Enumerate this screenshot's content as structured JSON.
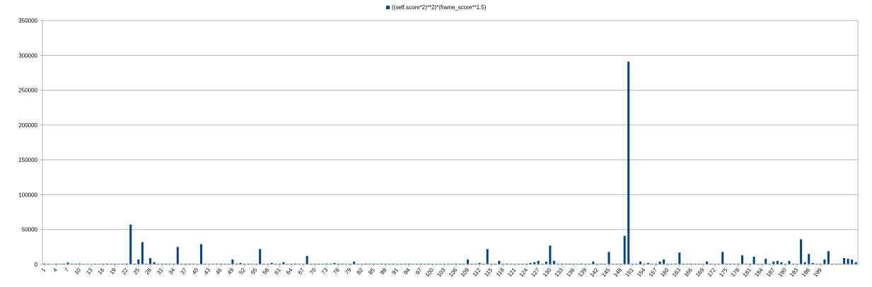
{
  "chart_data": {
    "type": "bar",
    "legend_position": "top",
    "grid": true,
    "color": "#004586",
    "ylim": [
      0,
      350000
    ],
    "yticks": [
      0,
      50000,
      100000,
      150000,
      200000,
      250000,
      300000,
      350000
    ],
    "series": [
      {
        "name": "((self.score*2)**2)*(frame_score**1.5)",
        "values": [
          1200,
          1000,
          800,
          1100,
          900,
          1000,
          2500,
          1000,
          1000,
          1300,
          900,
          800,
          700,
          1000,
          900,
          1100,
          1200,
          1000,
          1100,
          900,
          1000,
          1200,
          57000,
          1000,
          7000,
          32000,
          1000,
          9000,
          3000,
          1000,
          1000,
          1100,
          1000,
          1000,
          25000,
          1000,
          1000,
          1200,
          1000,
          800,
          29000,
          1000,
          700,
          1000,
          1200,
          1100,
          1000,
          900,
          7000,
          1000,
          2000,
          1000,
          1100,
          1000,
          900,
          22000,
          1000,
          900,
          2000,
          1000,
          1000,
          3000,
          1000,
          1000,
          1200,
          1000,
          900,
          12000,
          1000,
          1100,
          1000,
          900,
          1300,
          1000,
          2000,
          1000,
          1200,
          1000,
          1000,
          4000,
          1000,
          900,
          1100,
          1000,
          1000,
          900,
          1200,
          1000,
          1000,
          1100,
          900,
          1000,
          1000,
          1100,
          900,
          1000,
          1200,
          900,
          1100,
          1000,
          1000,
          900,
          1000,
          1000,
          900,
          1200,
          1000,
          1100,
          7000,
          1000,
          1000,
          2000,
          1000,
          22000,
          1000,
          1000,
          5000,
          1000,
          1200,
          900,
          900,
          1000,
          1000,
          1100,
          2000,
          3000,
          5000,
          1000,
          4000,
          27000,
          5000,
          1000,
          1200,
          1000,
          1100,
          1000,
          900,
          1200,
          1000,
          1000,
          4000,
          1000,
          1100,
          1000,
          18000,
          1000,
          1000,
          1100,
          41000,
          291000,
          1000,
          1000,
          4000,
          1000,
          2000,
          1000,
          1100,
          4000,
          7000,
          1000,
          1000,
          1200,
          17000,
          1000,
          1000,
          1200,
          1000,
          1000,
          900,
          4000,
          1000,
          900,
          1000,
          18000,
          1000,
          1000,
          1000,
          1200,
          13000,
          1000,
          1000,
          11000,
          1000,
          1000,
          8000,
          1000,
          4000,
          5000,
          3000,
          1000,
          5000,
          1000,
          1000,
          36000,
          3000,
          15000,
          2000,
          1000,
          1000,
          7000,
          19000,
          1000,
          1000,
          1000,
          9000,
          8000,
          7000,
          3000
        ]
      }
    ],
    "x_tick_labels": [
      "1",
      "4",
      "7",
      "10",
      "13",
      "16",
      "19",
      "22",
      "25",
      "28",
      "31",
      "34",
      "37",
      "40",
      "43",
      "46",
      "49",
      "52",
      "55",
      "58",
      "61",
      "64",
      "67",
      "70",
      "73",
      "76",
      "79",
      "82",
      "85",
      "88",
      "91",
      "94",
      "97",
      "100",
      "103",
      "106",
      "109",
      "112",
      "115",
      "118",
      "121",
      "124",
      "127",
      "130",
      "133",
      "136",
      "139",
      "142",
      "145",
      "148",
      "151",
      "154",
      "157",
      "160",
      "163",
      "166",
      "169",
      "172",
      "175",
      "178",
      "181",
      "184",
      "187",
      "190",
      "193",
      "196",
      "199"
    ]
  }
}
